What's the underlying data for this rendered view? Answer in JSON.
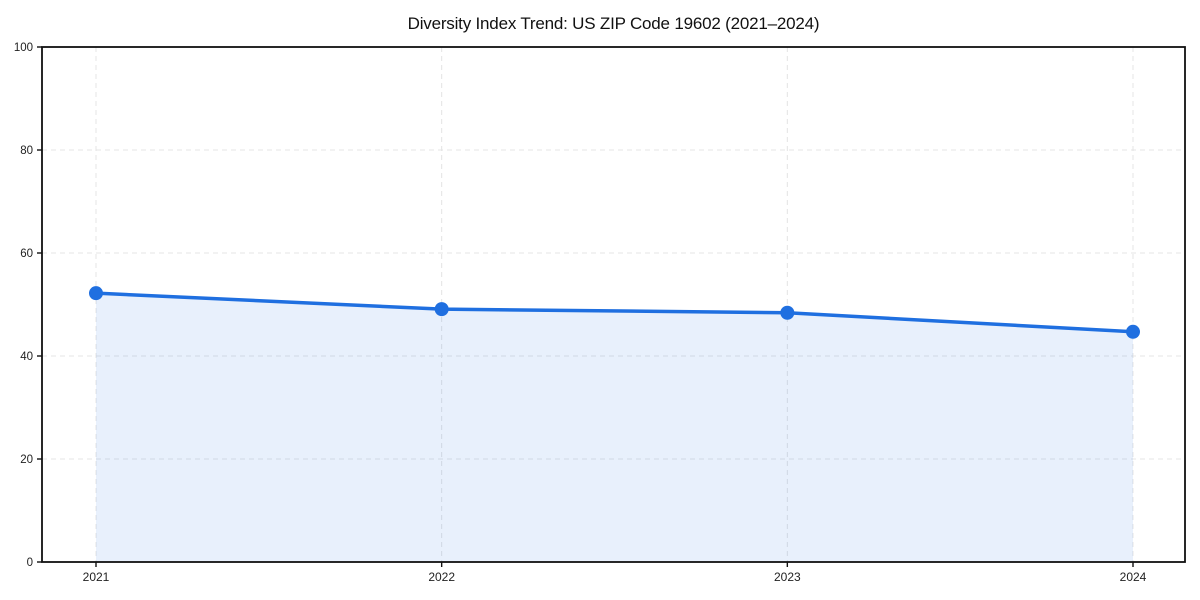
{
  "chart_data": {
    "type": "area",
    "title": "Diversity Index Trend: US ZIP Code 19602 (2021–2024)",
    "x": [
      2021,
      2022,
      2023,
      2024
    ],
    "xticks": [
      "2021",
      "2022",
      "2023",
      "2024"
    ],
    "yticks": [
      0,
      20,
      40,
      60,
      80,
      100
    ],
    "ylim": [
      0,
      100
    ],
    "series": [
      {
        "name": "Diversity Index",
        "values": [
          52.2,
          49.1,
          48.4,
          44.7
        ]
      }
    ],
    "xlabel": "",
    "ylabel": "",
    "grid": true,
    "legend_position": "none",
    "line_color": "#1f6fe0",
    "marker_color": "#1f6fe0",
    "fill_color": "#1f6fe0",
    "fill_opacity": 0.1,
    "grid_color": "#e4e4e4",
    "spine_color": "#111111",
    "background_color": "#ffffff"
  }
}
